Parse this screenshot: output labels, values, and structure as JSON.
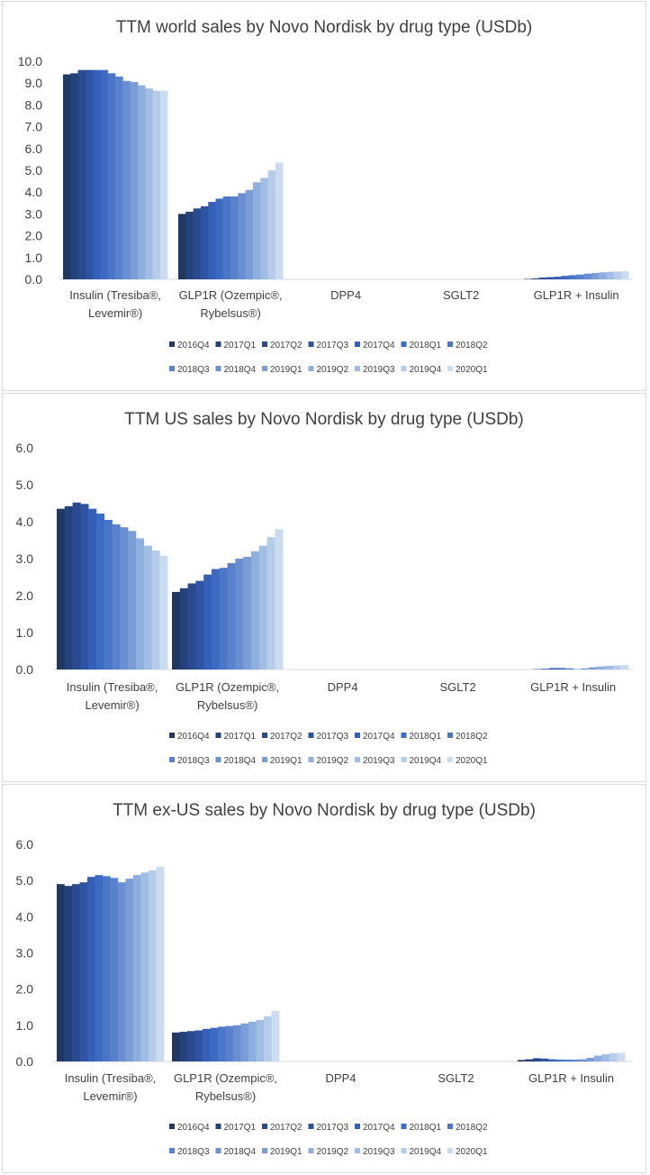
{
  "legend_colors": [
    "#1f3864",
    "#24417a",
    "#294a8f",
    "#2e53a3",
    "#3560b8",
    "#3d6bc4",
    "#4a76c8",
    "#5a82cc",
    "#6a8fd1",
    "#7b9dd6",
    "#8eaedd",
    "#a1bde3",
    "#b6cdea",
    "#cbdcf1"
  ],
  "chart_data": [
    {
      "type": "bar",
      "title": "TTM world sales by Novo Nordisk by drug type (USDb)",
      "categories": [
        "Insulin (Tresiba®, Levemir®)",
        "GLP1R (Ozempic®, Rybelsus®)",
        "DPP4",
        "SGLT2",
        "GLP1R + Insulin"
      ],
      "yticks": [
        "0.0",
        "1.0",
        "2.0",
        "3.0",
        "4.0",
        "5.0",
        "6.0",
        "7.0",
        "8.0",
        "9.0",
        "10.0"
      ],
      "ylim": [
        0,
        10
      ],
      "legend": [
        "2016Q4",
        "2017Q1",
        "2017Q2",
        "2017Q3",
        "2017Q4",
        "2018Q1",
        "2018Q2",
        "2018Q3",
        "2018Q4",
        "2019Q1",
        "2019Q2",
        "2019Q3",
        "2019Q4",
        "2020Q1"
      ],
      "series": [
        {
          "name": "2016Q4",
          "values": [
            9.4,
            3.0,
            0,
            0,
            0.02
          ]
        },
        {
          "name": "2017Q1",
          "values": [
            9.45,
            3.1,
            0,
            0,
            0.04
          ]
        },
        {
          "name": "2017Q2",
          "values": [
            9.6,
            3.25,
            0,
            0,
            0.08
          ]
        },
        {
          "name": "2017Q3",
          "values": [
            9.6,
            3.35,
            0,
            0,
            0.1
          ]
        },
        {
          "name": "2017Q4",
          "values": [
            9.6,
            3.55,
            0,
            0,
            0.12
          ]
        },
        {
          "name": "2018Q1",
          "values": [
            9.6,
            3.7,
            0,
            0,
            0.16
          ]
        },
        {
          "name": "2018Q2",
          "values": [
            9.45,
            3.8,
            0,
            0,
            0.19
          ]
        },
        {
          "name": "2018Q3",
          "values": [
            9.3,
            3.8,
            0,
            0,
            0.22
          ]
        },
        {
          "name": "2018Q4",
          "values": [
            9.1,
            3.95,
            0,
            0,
            0.26
          ]
        },
        {
          "name": "2019Q1",
          "values": [
            9.05,
            4.1,
            0,
            0,
            0.29
          ]
        },
        {
          "name": "2019Q2",
          "values": [
            8.9,
            4.45,
            0,
            0,
            0.32
          ]
        },
        {
          "name": "2019Q3",
          "values": [
            8.75,
            4.65,
            0,
            0,
            0.34
          ]
        },
        {
          "name": "2019Q4",
          "values": [
            8.65,
            5.0,
            0,
            0,
            0.36
          ]
        },
        {
          "name": "2020Q1",
          "values": [
            8.65,
            5.35,
            0,
            0,
            0.37
          ]
        }
      ]
    },
    {
      "type": "bar",
      "title": "TTM US sales by Novo Nordisk by drug type (USDb)",
      "categories": [
        "Insulin (Tresiba®, Levemir®)",
        "GLP1R (Ozempic®, Rybelsus®)",
        "DPP4",
        "SGLT2",
        "GLP1R + Insulin"
      ],
      "yticks": [
        "0.0",
        "1.0",
        "2.0",
        "3.0",
        "4.0",
        "5.0",
        "6.0"
      ],
      "ylim": [
        0,
        6
      ],
      "legend": [
        "2016Q4",
        "2017Q1",
        "2017Q2",
        "2017Q3",
        "2017Q4",
        "2018Q1",
        "2018Q2",
        "2018Q3",
        "2018Q4",
        "2019Q1",
        "2019Q2",
        "2019Q3",
        "2019Q4",
        "2020Q1"
      ],
      "series": [
        {
          "name": "2016Q4",
          "values": [
            4.35,
            2.1,
            0,
            0,
            0.0
          ]
        },
        {
          "name": "2017Q1",
          "values": [
            4.42,
            2.2,
            0,
            0,
            0.0
          ]
        },
        {
          "name": "2017Q2",
          "values": [
            4.52,
            2.33,
            0,
            0,
            0.01
          ]
        },
        {
          "name": "2017Q3",
          "values": [
            4.48,
            2.4,
            0,
            0,
            0.02
          ]
        },
        {
          "name": "2017Q4",
          "values": [
            4.35,
            2.57,
            0,
            0,
            0.04
          ]
        },
        {
          "name": "2018Q1",
          "values": [
            4.22,
            2.72,
            0,
            0,
            0.04
          ]
        },
        {
          "name": "2018Q2",
          "values": [
            4.05,
            2.75,
            0,
            0,
            0.03
          ]
        },
        {
          "name": "2018Q3",
          "values": [
            3.93,
            2.88,
            0,
            0,
            0.01
          ]
        },
        {
          "name": "2018Q4",
          "values": [
            3.85,
            3.0,
            0,
            0,
            0.03
          ]
        },
        {
          "name": "2019Q1",
          "values": [
            3.75,
            3.05,
            0,
            0,
            0.06
          ]
        },
        {
          "name": "2019Q2",
          "values": [
            3.55,
            3.2,
            0,
            0,
            0.08
          ]
        },
        {
          "name": "2019Q3",
          "values": [
            3.35,
            3.35,
            0,
            0,
            0.1
          ]
        },
        {
          "name": "2019Q4",
          "values": [
            3.22,
            3.58,
            0,
            0,
            0.11
          ]
        },
        {
          "name": "2020Q1",
          "values": [
            3.08,
            3.8,
            0,
            0,
            0.12
          ]
        }
      ]
    },
    {
      "type": "bar",
      "title": "TTM ex-US sales by Novo Nordisk by drug type (USDb)",
      "categories": [
        "Insulin (Tresiba®, Levemir®)",
        "GLP1R (Ozempic®, Rybelsus®)",
        "DPP4",
        "SGLT2",
        "GLP1R + Insulin"
      ],
      "yticks": [
        "0.0",
        "1.0",
        "2.0",
        "3.0",
        "4.0",
        "5.0",
        "6.0"
      ],
      "ylim": [
        0,
        6
      ],
      "legend": [
        "2016Q4",
        "2017Q1",
        "2017Q2",
        "2017Q3",
        "2017Q4",
        "2018Q1",
        "2018Q2",
        "2018Q3",
        "2018Q4",
        "2019Q1",
        "2019Q2",
        "2019Q3",
        "2019Q4",
        "2020Q1"
      ],
      "series": [
        {
          "name": "2016Q4",
          "values": [
            4.9,
            0.8,
            0,
            0,
            0.04
          ]
        },
        {
          "name": "2017Q1",
          "values": [
            4.85,
            0.82,
            0,
            0,
            0.06
          ]
        },
        {
          "name": "2017Q2",
          "values": [
            4.9,
            0.84,
            0,
            0,
            0.09
          ]
        },
        {
          "name": "2017Q3",
          "values": [
            4.95,
            0.86,
            0,
            0,
            0.08
          ]
        },
        {
          "name": "2017Q4",
          "values": [
            5.1,
            0.9,
            0,
            0,
            0.06
          ]
        },
        {
          "name": "2018Q1",
          "values": [
            5.15,
            0.93,
            0,
            0,
            0.05
          ]
        },
        {
          "name": "2018Q2",
          "values": [
            5.12,
            0.96,
            0,
            0,
            0.05
          ]
        },
        {
          "name": "2018Q3",
          "values": [
            5.07,
            0.98,
            0,
            0,
            0.05
          ]
        },
        {
          "name": "2018Q4",
          "values": [
            4.95,
            1.0,
            0,
            0,
            0.06
          ]
        },
        {
          "name": "2019Q1",
          "values": [
            5.05,
            1.05,
            0,
            0,
            0.1
          ]
        },
        {
          "name": "2019Q2",
          "values": [
            5.15,
            1.1,
            0,
            0,
            0.16
          ]
        },
        {
          "name": "2019Q3",
          "values": [
            5.22,
            1.15,
            0,
            0,
            0.2
          ]
        },
        {
          "name": "2019Q4",
          "values": [
            5.28,
            1.25,
            0,
            0,
            0.23
          ]
        },
        {
          "name": "2020Q1",
          "values": [
            5.38,
            1.4,
            0,
            0,
            0.24
          ]
        }
      ]
    }
  ]
}
